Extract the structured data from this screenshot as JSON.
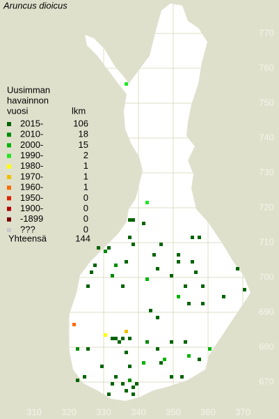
{
  "title": "Aruncus dioicus",
  "legend": {
    "heading": [
      "Uusimman",
      "havainnon",
      "vuosi"
    ],
    "count_heading": "lkm",
    "entries": [
      {
        "label": "2015-",
        "count": 106,
        "color": "#006400"
      },
      {
        "label": "2010-",
        "count": 18,
        "color": "#008a00"
      },
      {
        "label": "2000-",
        "count": 15,
        "color": "#00b400"
      },
      {
        "label": "1990-",
        "count": 2,
        "color": "#22e622"
      },
      {
        "label": "1980-",
        "count": 1,
        "color": "#ffff00"
      },
      {
        "label": "1970-",
        "count": 1,
        "color": "#f0c000"
      },
      {
        "label": "1960-",
        "count": 1,
        "color": "#ff6a00"
      },
      {
        "label": "1950-",
        "count": 0,
        "color": "#e02000"
      },
      {
        "label": "1900-",
        "count": 0,
        "color": "#b00000"
      },
      {
        "label": "-1899",
        "count": 0,
        "color": "#780000"
      },
      {
        "label": "???",
        "count": 0,
        "color": "#c8c8c8"
      }
    ],
    "total_label": "Yhteensä",
    "total": 144
  },
  "xticks": [
    310,
    320,
    330,
    340,
    350,
    360,
    370
  ],
  "yticks": [
    670,
    680,
    690,
    700,
    710,
    720,
    730,
    740,
    750,
    760,
    770
  ],
  "squares": [
    [
      336,
      755,
      3
    ],
    [
      342,
      721,
      3
    ],
    [
      338,
      716,
      0
    ],
    [
      337,
      716,
      0
    ],
    [
      341,
      715,
      0
    ],
    [
      355,
      711,
      0
    ],
    [
      357,
      711,
      0
    ],
    [
      337,
      711,
      0
    ],
    [
      338,
      709,
      0
    ],
    [
      328,
      708,
      0
    ],
    [
      331,
      708,
      0
    ],
    [
      330,
      707,
      1
    ],
    [
      344,
      706,
      0
    ],
    [
      346,
      709,
      0
    ],
    [
      351,
      706,
      0
    ],
    [
      351,
      704,
      0
    ],
    [
      355,
      704,
      0
    ],
    [
      327,
      703,
      0
    ],
    [
      333,
      703,
      1
    ],
    [
      336,
      704,
      0
    ],
    [
      349,
      700,
      0
    ],
    [
      356,
      701,
      0
    ],
    [
      368,
      702,
      0
    ],
    [
      345,
      702,
      0
    ],
    [
      342,
      699,
      2
    ],
    [
      332,
      700,
      1
    ],
    [
      335,
      697,
      0
    ],
    [
      353,
      697,
      0
    ],
    [
      358,
      697,
      0
    ],
    [
      370,
      696,
      0
    ],
    [
      325,
      697,
      0
    ],
    [
      364,
      694,
      0
    ],
    [
      351,
      694,
      2
    ],
    [
      358,
      692,
      0
    ],
    [
      354,
      692,
      0
    ],
    [
      343,
      690,
      0
    ],
    [
      345,
      688,
      0
    ],
    [
      321,
      686,
      6
    ],
    [
      330,
      683,
      4
    ],
    [
      336,
      684,
      5
    ],
    [
      332,
      682,
      0
    ],
    [
      333,
      682,
      0
    ],
    [
      335,
      682,
      0
    ],
    [
      337,
      682,
      0
    ],
    [
      334,
      681,
      0
    ],
    [
      349,
      681,
      0
    ],
    [
      353,
      681,
      0
    ],
    [
      342,
      681,
      1
    ],
    [
      325,
      679,
      0
    ],
    [
      322,
      679,
      1
    ],
    [
      336,
      678,
      0
    ],
    [
      345,
      679,
      0
    ],
    [
      360,
      679,
      2
    ],
    [
      354,
      677,
      2
    ],
    [
      357,
      676,
      0
    ],
    [
      341,
      675,
      2
    ],
    [
      346,
      675,
      0
    ],
    [
      329,
      674,
      0
    ],
    [
      337,
      674,
      0
    ],
    [
      324,
      671,
      0
    ],
    [
      322,
      670,
      0
    ],
    [
      352,
      671,
      0
    ],
    [
      349,
      671,
      0
    ],
    [
      332,
      669,
      0
    ],
    [
      331,
      666,
      0
    ],
    [
      336,
      667,
      0
    ],
    [
      338,
      668,
      0
    ],
    [
      339,
      669,
      0
    ],
    [
      337,
      670,
      1
    ],
    [
      335,
      669,
      0
    ],
    [
      338,
      666,
      0
    ],
    [
      333,
      671,
      0
    ],
    [
      347,
      676,
      2
    ],
    [
      326,
      701,
      0
    ]
  ]
}
